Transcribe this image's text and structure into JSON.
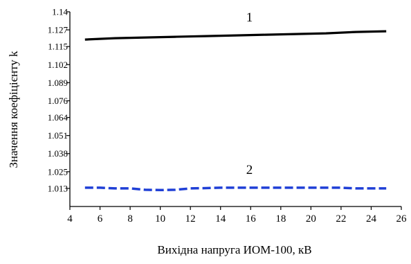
{
  "chart_data": {
    "type": "line",
    "title": "",
    "xlabel": "Вихідна напруга ИОМ-100, кВ",
    "ylabel": "Значення коефіцієнту k",
    "xlim": [
      4,
      26
    ],
    "ylim": [
      1.0,
      1.14
    ],
    "x_ticks": [
      4,
      6,
      8,
      10,
      12,
      14,
      16,
      18,
      20,
      22,
      24,
      26
    ],
    "x_tick_labels": [
      "4",
      "6",
      "8",
      "10",
      "12",
      "14",
      "16",
      "18",
      "20",
      "22",
      "24",
      "26"
    ],
    "y_ticks": [
      1.013,
      1.025,
      1.038,
      1.051,
      1.064,
      1.076,
      1.089,
      1.102,
      1.115,
      1.127,
      1.14
    ],
    "y_tick_labels": [
      "1.013",
      "1.025",
      "1.038",
      "1.051",
      "1.064",
      "1.076",
      "1.089",
      "1.102",
      "1.115",
      "1.127",
      "1.14"
    ],
    "grid": false,
    "series": [
      {
        "name": "1",
        "color": "#000000",
        "style": "solid",
        "x": [
          5,
          7,
          9,
          11,
          13,
          15,
          17,
          19,
          21,
          23,
          25
        ],
        "y": [
          1.12,
          1.121,
          1.1215,
          1.122,
          1.1225,
          1.123,
          1.1235,
          1.124,
          1.1245,
          1.1255,
          1.126
        ]
      },
      {
        "name": "2",
        "color": "#1f3fd6",
        "style": "dashed",
        "x": [
          5,
          6,
          7,
          8,
          9,
          10,
          11,
          12,
          13,
          14,
          15,
          16,
          17,
          18,
          19,
          20,
          21,
          22,
          23,
          24,
          25
        ],
        "y": [
          1.0135,
          1.0135,
          1.013,
          1.013,
          1.012,
          1.0118,
          1.012,
          1.013,
          1.0132,
          1.0135,
          1.0135,
          1.0135,
          1.0135,
          1.0135,
          1.0135,
          1.0135,
          1.0135,
          1.0135,
          1.013,
          1.013,
          1.013
        ]
      }
    ]
  }
}
